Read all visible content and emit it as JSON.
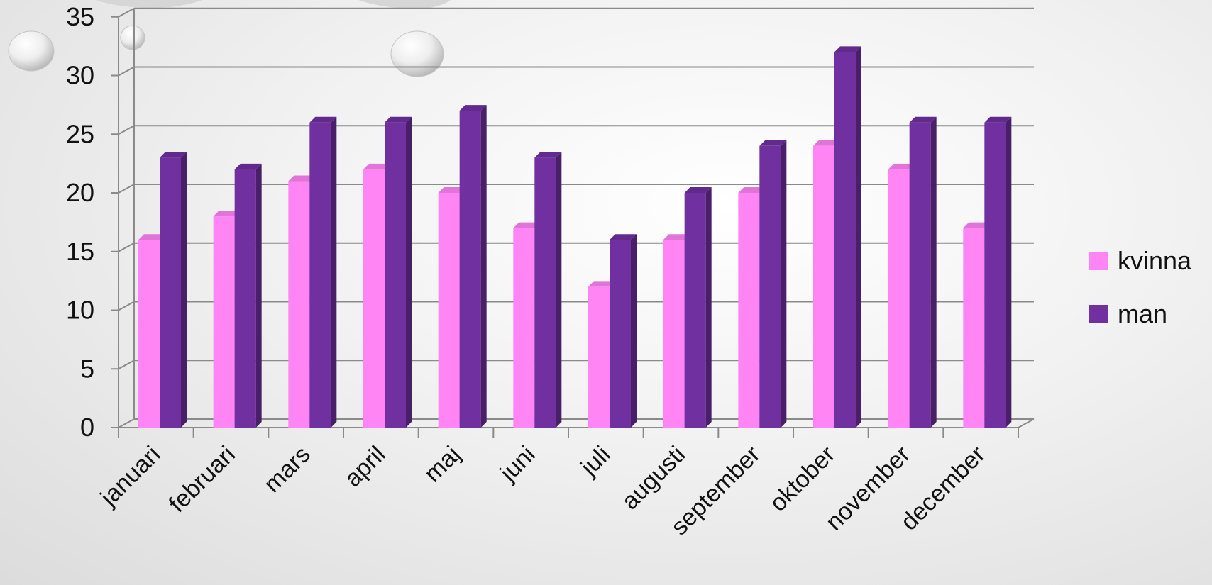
{
  "chart_data": {
    "type": "bar",
    "style": "3d-clustered-column",
    "categories": [
      "januari",
      "februari",
      "mars",
      "april",
      "maj",
      "juni",
      "juli",
      "augusti",
      "september",
      "oktober",
      "november",
      "december"
    ],
    "series": [
      {
        "name": "kvinna",
        "color": "#ff85f5",
        "values": [
          16,
          18,
          21,
          22,
          20,
          17,
          12,
          16,
          20,
          24,
          22,
          17
        ]
      },
      {
        "name": "man",
        "color": "#7030a0",
        "values": [
          23,
          22,
          26,
          26,
          27,
          23,
          16,
          20,
          24,
          32,
          26,
          26
        ]
      }
    ],
    "yticks": [
      0,
      5,
      10,
      15,
      20,
      25,
      30,
      35
    ],
    "ylim": [
      0,
      35
    ],
    "grid": true,
    "legend_position": "right",
    "title": "",
    "xlabel": "",
    "ylabel": ""
  }
}
